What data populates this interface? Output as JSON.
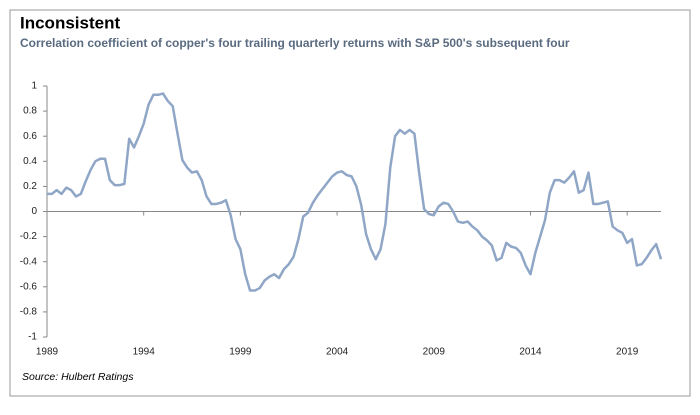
{
  "chart_data": {
    "type": "line",
    "title": "Inconsistent",
    "subtitle": "Correlation coefficient of copper's four trailing quarterly returns with S&P 500's subsequent four",
    "source": "Source: Hulbert Ratings",
    "color": "#8fa6c6",
    "x": [
      1989,
      1989.25,
      1989.5,
      1989.75,
      1990,
      1990.25,
      1990.5,
      1990.75,
      1991,
      1991.25,
      1991.5,
      1991.75,
      1992,
      1992.25,
      1992.5,
      1992.75,
      1993,
      1993.25,
      1993.5,
      1993.75,
      1994,
      1994.25,
      1994.5,
      1994.75,
      1995,
      1995.25,
      1995.5,
      1995.75,
      1996,
      1996.25,
      1996.5,
      1996.75,
      1997,
      1997.25,
      1997.5,
      1997.75,
      1998,
      1998.25,
      1998.5,
      1998.75,
      1999,
      1999.25,
      1999.5,
      1999.75,
      2000,
      2000.25,
      2000.5,
      2000.75,
      2001,
      2001.25,
      2001.5,
      2001.75,
      2002,
      2002.25,
      2002.5,
      2002.75,
      2003,
      2003.25,
      2003.5,
      2003.75,
      2004,
      2004.25,
      2004.5,
      2004.75,
      2005,
      2005.25,
      2005.5,
      2005.75,
      2006,
      2006.25,
      2006.5,
      2006.75,
      2007,
      2007.25,
      2007.5,
      2007.75,
      2008,
      2008.25,
      2008.5,
      2008.75,
      2009,
      2009.25,
      2009.5,
      2009.75,
      2010,
      2010.25,
      2010.5,
      2010.75,
      2011,
      2011.25,
      2011.5,
      2011.75,
      2012,
      2012.25,
      2012.5,
      2012.75,
      2013,
      2013.25,
      2013.5,
      2013.75,
      2014,
      2014.25,
      2014.5,
      2014.75,
      2015,
      2015.25,
      2015.5,
      2015.75,
      2016,
      2016.25,
      2016.5,
      2016.75,
      2017,
      2017.25,
      2017.5,
      2017.75,
      2018,
      2018.25,
      2018.5,
      2018.75,
      2019,
      2019.25,
      2019.5,
      2019.75,
      2020,
      2020.25,
      2020.5,
      2020.75
    ],
    "values": [
      0.14,
      0.14,
      0.17,
      0.14,
      0.19,
      0.17,
      0.12,
      0.14,
      0.24,
      0.33,
      0.4,
      0.42,
      0.42,
      0.25,
      0.21,
      0.21,
      0.22,
      0.58,
      0.51,
      0.6,
      0.7,
      0.85,
      0.93,
      0.93,
      0.94,
      0.88,
      0.84,
      0.62,
      0.41,
      0.35,
      0.31,
      0.32,
      0.25,
      0.12,
      0.06,
      0.06,
      0.07,
      0.09,
      -0.03,
      -0.22,
      -0.3,
      -0.5,
      -0.63,
      -0.63,
      -0.61,
      -0.55,
      -0.52,
      -0.5,
      -0.53,
      -0.46,
      -0.42,
      -0.36,
      -0.22,
      -0.04,
      -0.01,
      0.07,
      0.13,
      0.18,
      0.23,
      0.28,
      0.31,
      0.32,
      0.29,
      0.28,
      0.2,
      0.05,
      -0.18,
      -0.3,
      -0.38,
      -0.3,
      -0.1,
      0.35,
      0.6,
      0.65,
      0.62,
      0.65,
      0.62,
      0.3,
      0.02,
      -0.02,
      -0.03,
      0.04,
      0.07,
      0.06,
      0,
      -0.08,
      -0.09,
      -0.08,
      -0.12,
      -0.15,
      -0.2,
      -0.23,
      -0.27,
      -0.39,
      -0.37,
      -0.25,
      -0.28,
      -0.29,
      -0.33,
      -0.43,
      -0.5,
      -0.33,
      -0.2,
      -0.07,
      0.15,
      0.25,
      0.25,
      0.23,
      0.27,
      0.32,
      0.15,
      0.17,
      0.31,
      0.06,
      0.06,
      0.07,
      0.08,
      -0.12,
      -0.15,
      -0.17,
      -0.25,
      -0.22,
      -0.43,
      -0.42,
      -0.37,
      -0.31,
      -0.26,
      -0.38
    ],
    "xlim": [
      1989,
      2020.75
    ],
    "xticks": [
      1989,
      1994,
      1999,
      2004,
      2009,
      2014,
      2019
    ],
    "ylim": [
      -1,
      1
    ],
    "yticks": [
      1,
      0.8,
      0.6,
      0.4,
      0.2,
      0,
      -0.2,
      -0.4,
      -0.6,
      -0.8,
      -1
    ]
  }
}
